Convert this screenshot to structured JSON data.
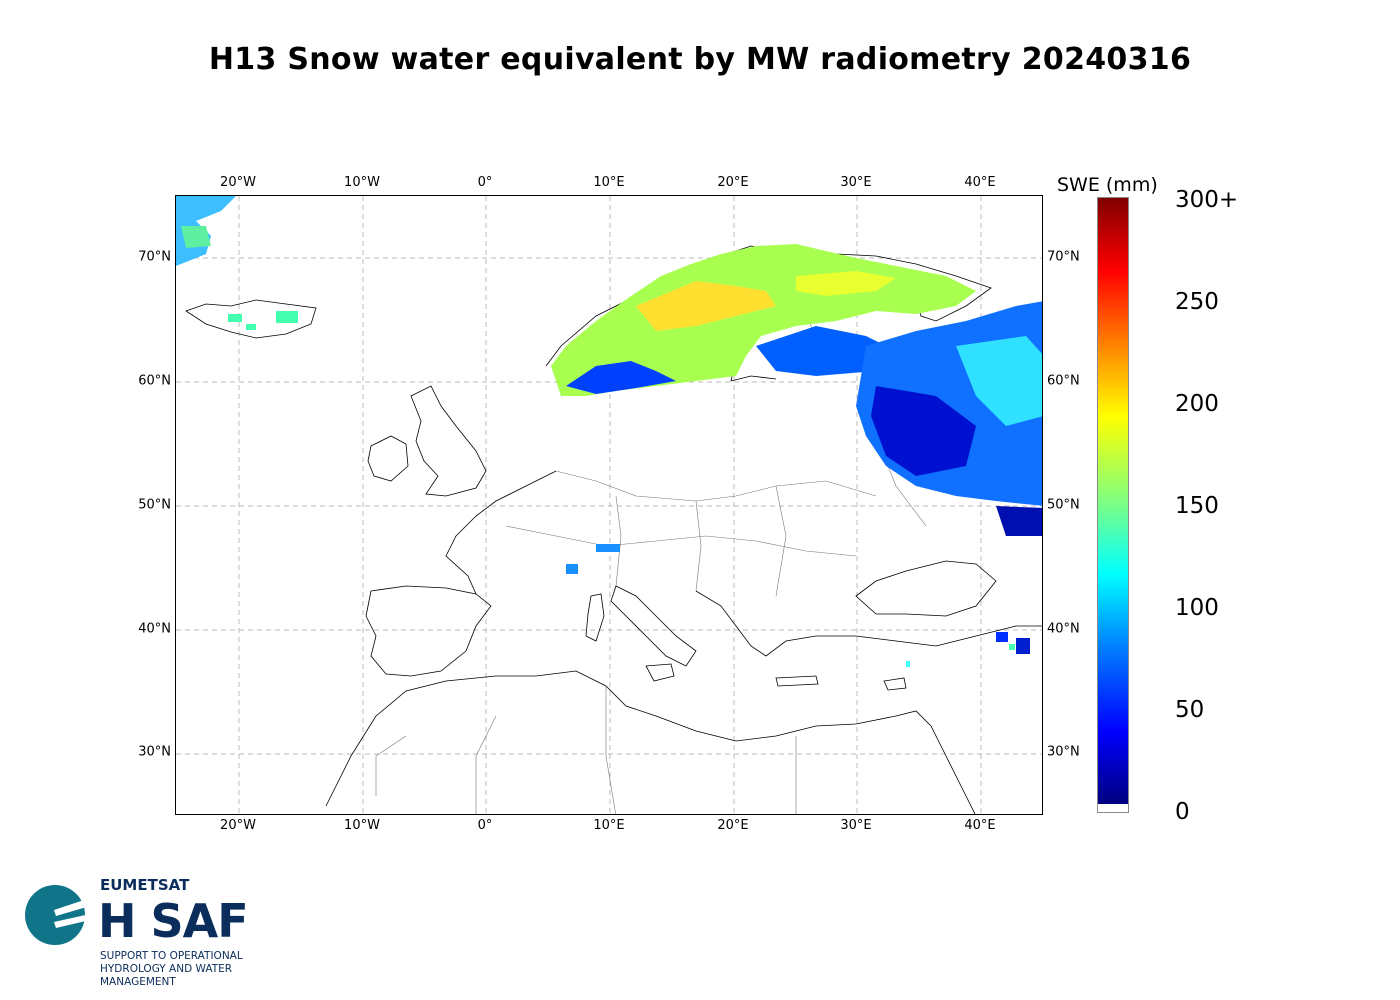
{
  "title": "H13 Snow water equivalent by MW radiometry 20240316",
  "map": {
    "lon_ticks": [
      "20°W",
      "10°W",
      "0°",
      "10°E",
      "20°E",
      "30°E",
      "40°E"
    ],
    "lat_ticks": [
      "70°N",
      "60°N",
      "50°N",
      "40°N",
      "30°N"
    ],
    "lon_range": [
      -25,
      45
    ],
    "lat_range": [
      25,
      75
    ],
    "grid": true
  },
  "colorbar": {
    "label": "SWE (mm)",
    "ticks": [
      "300+",
      "250",
      "200",
      "150",
      "100",
      "50",
      "0"
    ],
    "colors": {
      "high": "#800000",
      "mid": "#ffff00",
      "low": "#000080"
    }
  },
  "logo": {
    "org": "EUMETSAT",
    "name": "H SAF",
    "line1": "SUPPORT TO OPERATIONAL",
    "line2": "HYDROLOGY AND WATER",
    "line3": "MANAGEMENT"
  },
  "icons": [
    "hsaf-logo-icon"
  ]
}
